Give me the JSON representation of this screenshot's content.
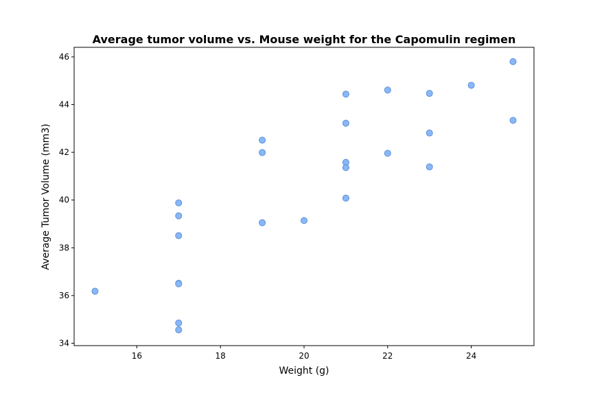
{
  "chart_data": {
    "type": "scatter",
    "title": "Average tumor volume vs. Mouse weight for the Capomulin regimen",
    "xlabel": "Weight (g)",
    "ylabel": "Average Tumor Volume (mm3)",
    "xlim": [
      14.5,
      25.5
    ],
    "ylim": [
      33.9,
      46.4
    ],
    "xticks": [
      16,
      18,
      20,
      22,
      24
    ],
    "yticks": [
      34,
      36,
      38,
      40,
      42,
      44,
      46
    ],
    "grid": false,
    "colors": {
      "point_fill": "#8ab8f7",
      "point_edge": "#5b8fd9"
    },
    "points": [
      {
        "x": 15,
        "y": 36.18
      },
      {
        "x": 17,
        "y": 39.88
      },
      {
        "x": 17,
        "y": 39.34
      },
      {
        "x": 17,
        "y": 38.51
      },
      {
        "x": 17,
        "y": 36.51
      },
      {
        "x": 17,
        "y": 36.49
      },
      {
        "x": 17,
        "y": 34.85
      },
      {
        "x": 17,
        "y": 34.56
      },
      {
        "x": 19,
        "y": 42.51
      },
      {
        "x": 19,
        "y": 41.99
      },
      {
        "x": 19,
        "y": 39.05
      },
      {
        "x": 20,
        "y": 39.14
      },
      {
        "x": 21,
        "y": 44.44
      },
      {
        "x": 21,
        "y": 43.22
      },
      {
        "x": 21,
        "y": 41.58
      },
      {
        "x": 21,
        "y": 41.36
      },
      {
        "x": 21,
        "y": 40.08
      },
      {
        "x": 22,
        "y": 44.61
      },
      {
        "x": 22,
        "y": 41.96
      },
      {
        "x": 23,
        "y": 44.47
      },
      {
        "x": 23,
        "y": 42.81
      },
      {
        "x": 23,
        "y": 41.39
      },
      {
        "x": 24,
        "y": 44.81
      },
      {
        "x": 25,
        "y": 45.8
      },
      {
        "x": 25,
        "y": 43.34
      }
    ]
  }
}
